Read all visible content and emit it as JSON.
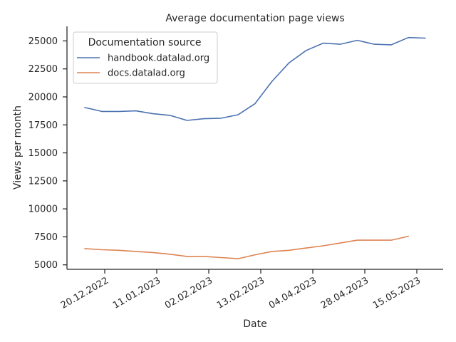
{
  "chart_data": {
    "type": "line",
    "title": "Average documentation page views",
    "xlabel": "Date",
    "ylabel": "Views per month",
    "ylim": [
      4600,
      26300
    ],
    "yticks": [
      5000,
      7500,
      10000,
      12500,
      15000,
      17500,
      20000,
      22500,
      25000
    ],
    "xticks": [
      "20.12.2022",
      "11.01.2023",
      "02.02.2023",
      "13.02.2023",
      "04.04.2023",
      "28.04.2023",
      "15.05.2023"
    ],
    "grid": false,
    "legend": {
      "title": "Documentation source",
      "position": "top-left"
    },
    "series": [
      {
        "name": "handbook.datalad.org",
        "color": "#4c72b0",
        "values": [
          19050,
          18700,
          18700,
          18750,
          18500,
          18350,
          17900,
          18050,
          18100,
          18400,
          19400,
          21400,
          23050,
          24150,
          24800,
          24700,
          25050,
          24700,
          24650,
          25300,
          25250
        ]
      },
      {
        "name": "docs.datalad.org",
        "color": "#dd8452",
        "values": [
          6450,
          6350,
          6300,
          6200,
          6100,
          5950,
          5750,
          5750,
          5650,
          5550,
          5900,
          6200,
          6300,
          6500,
          6700,
          6950,
          7200,
          7200,
          7200,
          7550
        ]
      }
    ]
  }
}
